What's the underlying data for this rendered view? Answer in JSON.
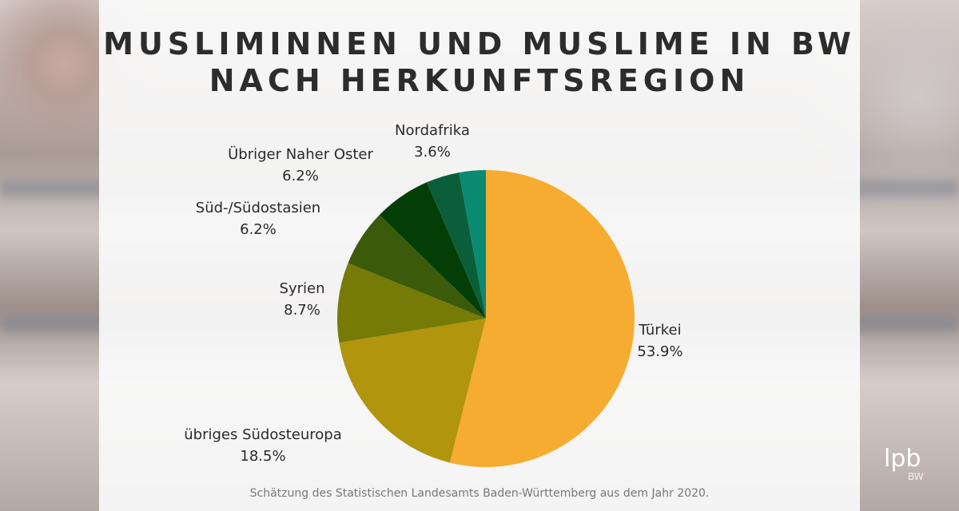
{
  "title_lines": [
    "MUSLIMINNEN UND MUSLIME IN BW",
    "NACH HERKUNFTSREGION"
  ],
  "chart_data": {
    "type": "pie",
    "title": "MUSLIMINNEN UND MUSLIME IN BW NACH HERKUNFTSREGION",
    "start": "top",
    "direction": "clockwise",
    "slices": [
      {
        "label": "Türkei",
        "value": 53.9,
        "value_label": "53.9%",
        "color": "#F6AC31"
      },
      {
        "label": "übriges Südosteuropa",
        "value": 18.5,
        "value_label": "18.5%",
        "color": "#B0950D"
      },
      {
        "label": "Syrien",
        "value": 8.7,
        "value_label": "8.7%",
        "color": "#767A06"
      },
      {
        "label": "Süd-/Südostasien",
        "value": 6.2,
        "value_label": "6.2%",
        "color": "#3B5B0B"
      },
      {
        "label": "Übriger Naher Oster",
        "value": 6.2,
        "value_label": "6.2%",
        "color": "#043E07"
      },
      {
        "label": "Nordafrika",
        "value": 3.6,
        "value_label": "3.6%",
        "color": "#0A5E3A"
      },
      {
        "label": "",
        "value": 2.9,
        "value_label": "",
        "color": "#0B8A72"
      }
    ]
  },
  "footnote": "Schätzung des Statistischen Landesamts Baden-Württemberg aus dem Jahr 2020.",
  "logo": {
    "main": "lpb",
    "sub": "BW"
  }
}
